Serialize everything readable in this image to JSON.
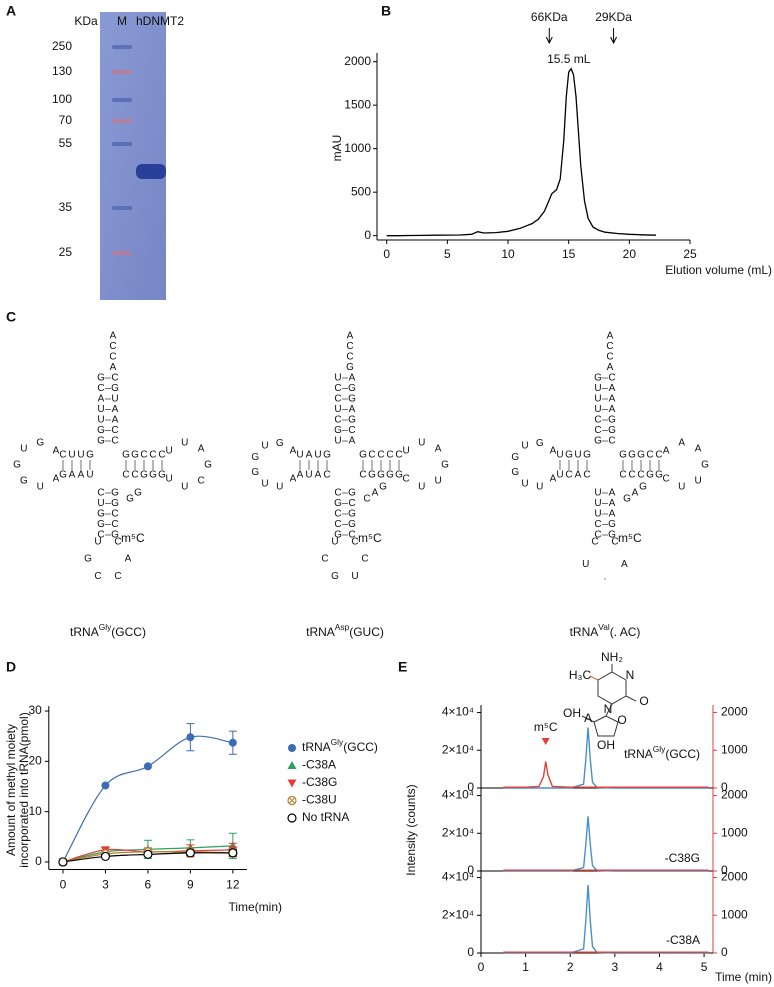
{
  "panel_labels": [
    "A",
    "B",
    "C",
    "D",
    "E"
  ],
  "gel": {
    "header": [
      "KDa",
      "M",
      "hDNMT2"
    ],
    "ladder": [
      250,
      130,
      100,
      70,
      55,
      35,
      25
    ]
  },
  "chart_data": [
    {
      "type": "line",
      "color": "#000000",
      "x": [
        0,
        1,
        2,
        3,
        4,
        5,
        6,
        7,
        7.5,
        8,
        9,
        10,
        11,
        12,
        12.5,
        13,
        13.3,
        13.6,
        14,
        14.3,
        14.6,
        14.8,
        15,
        15.2,
        15.4,
        15.6,
        15.8,
        16,
        16.3,
        16.6,
        17,
        17.5,
        18,
        19,
        20,
        21,
        22.2
      ],
      "values": [
        0,
        0,
        2,
        3,
        5,
        6,
        8,
        15,
        45,
        30,
        35,
        50,
        85,
        140,
        190,
        280,
        380,
        480,
        530,
        650,
        1100,
        1600,
        1880,
        1920,
        1850,
        1600,
        1200,
        800,
        400,
        200,
        100,
        60,
        40,
        25,
        15,
        10,
        5
      ],
      "xlim": [
        -0.8,
        25
      ],
      "xticks": [
        0,
        5,
        10,
        15,
        20,
        25
      ],
      "ylim": [
        -50,
        2100
      ],
      "yticks": [
        0,
        500,
        1000,
        1500,
        2000
      ],
      "ylabel": "mAU",
      "xlabel": "Elution volume (mL)",
      "annotations": [
        {
          "text": "66KDa",
          "x": 13.4
        },
        {
          "text": "29KDa",
          "x": 18.7
        },
        {
          "text": "15.5 mL",
          "x": 15.5
        }
      ]
    },
    {
      "type": "scatter",
      "x": [
        0,
        3,
        6,
        9,
        12
      ],
      "series": [
        {
          "name": {
            "base": "tRNA",
            "sup": "Gly",
            "tail": "(GCC)"
          },
          "color": "#3a6db5",
          "marker": "circle",
          "values": [
            0,
            15.2,
            19,
            24.8,
            23.7
          ],
          "errors": [
            0,
            0,
            0,
            2.7,
            2.3
          ]
        },
        {
          "name": "-C38A",
          "color": "#2ca25f",
          "marker": "triangle",
          "values": [
            0,
            2,
            2.5,
            2.8,
            3.2
          ],
          "errors": [
            0,
            0.8,
            1.8,
            1.6,
            2.5
          ]
        },
        {
          "name": "-C38G",
          "color": "#e0403a",
          "marker": "triangle-down",
          "values": [
            0,
            2.4,
            2,
            2.2,
            2.4
          ],
          "errors": [
            0,
            0.6,
            0.8,
            1.2,
            1.3
          ]
        },
        {
          "name": "-C38U",
          "color": "#b5832e",
          "marker": "circle-x",
          "values": [
            0,
            1.6,
            2,
            2,
            1.8
          ],
          "errors": [
            0,
            0.4,
            0.6,
            0.8,
            0.8
          ]
        },
        {
          "name": "No tRNA",
          "color": "#000000",
          "marker": "circle-open",
          "values": [
            0,
            1.1,
            1.5,
            1.8,
            1.8
          ],
          "errors": [
            0,
            0.3,
            0.4,
            0.5,
            0.6
          ]
        }
      ],
      "xlim": [
        -1,
        13
      ],
      "xticks": [
        0,
        3,
        6,
        9,
        12
      ],
      "ylim": [
        -1.5,
        31
      ],
      "yticks": [
        0,
        10,
        20,
        30
      ],
      "ylabel": [
        "Amount of methyl moiety",
        "incorporated into tRNA(pmol)"
      ],
      "xlabel": "Time(min)"
    },
    {
      "type": "line",
      "x": [
        0.5,
        1.0,
        1.3,
        1.4,
        1.45,
        1.5,
        1.6,
        2.0,
        2.3,
        2.35,
        2.4,
        2.45,
        2.5,
        2.6,
        3.0,
        4.0,
        5.1
      ],
      "series": [
        {
          "color": "#4a90c8",
          "values": [
            0,
            0,
            0,
            0,
            0,
            0,
            0,
            0,
            2000,
            15000,
            32000,
            15000,
            3000,
            300,
            0,
            0,
            0
          ]
        },
        {
          "color": "#e0403a",
          "axis": "y2",
          "values": [
            20,
            20,
            40,
            300,
            700,
            350,
            40,
            20,
            20,
            20,
            20,
            20,
            20,
            20,
            20,
            20,
            20
          ]
        }
      ],
      "xlim": [
        0,
        5.2
      ],
      "ylim": [
        0,
        44000
      ],
      "yticks": [
        0,
        {
          "value": 20000,
          "label": "2×10⁴"
        },
        {
          "value": 40000,
          "label": "4×10⁴"
        }
      ],
      "y2lim": [
        0,
        2200
      ],
      "y2ticks": [
        0,
        1000,
        2000
      ],
      "label": {
        "base": "tRNA",
        "sup": "Gly",
        "tail": "(GCC)"
      },
      "annotations": [
        {
          "text": "m⁵C",
          "x": 1.45,
          "color": "#e0403a"
        },
        {
          "text": "A",
          "x": 2.4,
          "color": "#4a90c8"
        }
      ],
      "ylabel": "Intensity (counts)"
    },
    {
      "type": "line",
      "x": [
        0.5,
        1.0,
        1.3,
        1.4,
        1.45,
        1.5,
        1.6,
        2.0,
        2.3,
        2.35,
        2.4,
        2.45,
        2.5,
        2.6,
        3.0,
        4.0,
        5.1
      ],
      "series": [
        {
          "color": "#4a90c8",
          "values": [
            0,
            0,
            0,
            0,
            0,
            0,
            0,
            0,
            1800,
            14000,
            29000,
            14000,
            2800,
            300,
            0,
            0,
            0
          ]
        },
        {
          "color": "#e0403a",
          "axis": "y2",
          "values": [
            20,
            20,
            20,
            20,
            20,
            20,
            20,
            20,
            20,
            20,
            20,
            20,
            20,
            20,
            20,
            20,
            20
          ]
        }
      ],
      "xlim": [
        0,
        5.2
      ],
      "ylim": [
        0,
        44000
      ],
      "yticks": [
        0,
        {
          "value": 20000,
          "label": "2×10⁴"
        },
        {
          "value": 40000,
          "label": "4×10⁴"
        }
      ],
      "y2lim": [
        0,
        2200
      ],
      "y2ticks": [
        0,
        1000,
        2000
      ],
      "label": "-C38G"
    },
    {
      "type": "line",
      "x": [
        0.5,
        1.0,
        1.3,
        1.4,
        1.45,
        1.5,
        1.6,
        2.0,
        2.3,
        2.35,
        2.4,
        2.45,
        2.5,
        2.6,
        3.0,
        4.0,
        5.1
      ],
      "series": [
        {
          "color": "#4a90c8",
          "values": [
            0,
            0,
            0,
            0,
            0,
            0,
            0,
            0,
            2200,
            17000,
            36000,
            17000,
            3400,
            300,
            0,
            0,
            0
          ]
        },
        {
          "color": "#e0403a",
          "axis": "y2",
          "values": [
            20,
            20,
            20,
            20,
            20,
            20,
            20,
            20,
            20,
            20,
            20,
            20,
            20,
            20,
            20,
            20,
            20
          ]
        }
      ],
      "xlim": [
        0,
        5.2
      ],
      "xticks": [
        0,
        1,
        2,
        3,
        4,
        5
      ],
      "ylim": [
        0,
        44000
      ],
      "yticks": [
        0,
        {
          "value": 20000,
          "label": "2×10⁴"
        },
        {
          "value": 40000,
          "label": "4×10⁴"
        }
      ],
      "y2lim": [
        0,
        2200
      ],
      "y2ticks": [
        0,
        1000,
        2000
      ],
      "label": "-C38A",
      "xlabel": "Time (min)"
    }
  ],
  "trna": [
    {
      "name": {
        "base": "tRNA",
        "sup": "Gly",
        "tail": "(GCC)"
      },
      "tail": "ACCA",
      "acc5": "GCAUUGG",
      "acc3": "CGUAACC",
      "d5": "CUUG",
      "d3": "GAAU",
      "dloop": "AGUGGUA",
      "t5": "GGCCC",
      "t3": "CCGGG",
      "tloop": "UUAGCUU",
      "var": "GG",
      "ac5": "CUGGC",
      "ac3": "GGCCG",
      "acloop": "UGCCAC",
      "mod": "m⁵C"
    },
    {
      "name": {
        "base": "tRNA",
        "sup": "Asp",
        "tail": "(GUC)"
      },
      "tail": "ACCG",
      "acc5": "UCCUCGU",
      "acc3": "AGGAGCA",
      "d5": "UAUG",
      "d3": "AUAC",
      "dloop": "AGUGGUUA",
      "t5": "GCCCC",
      "t3": "CGGGG",
      "tloop": "UUAGUUC",
      "var": "CAG",
      "ac5": "CGCCG",
      "ac3": "GCGGC",
      "acloop": "UCGUCC",
      "mod": "m⁵C"
    },
    {
      "name": {
        "base": "tRNA",
        "sup": "Val",
        "tail": "(. AC)"
      },
      "tail": "ACCA",
      "acc5": "GUUUCCG",
      "acc3": "CAAAGGC",
      "d5": "UGUG",
      "d3": "UCAC",
      "dloop": "AGUGGUUA",
      "t5": "GGGCC",
      "t3": "CCCGG",
      "tloop": "AAAGUUC",
      "var": "GAG",
      "ac5": "UUUCC",
      "ac3": "AAAGG",
      "acloop": "CU·AC",
      "mod": "m⁵C"
    }
  ],
  "structure": [
    "NH₂",
    "H₃C",
    "N",
    "O",
    "N",
    "O",
    "OH",
    "OH"
  ]
}
